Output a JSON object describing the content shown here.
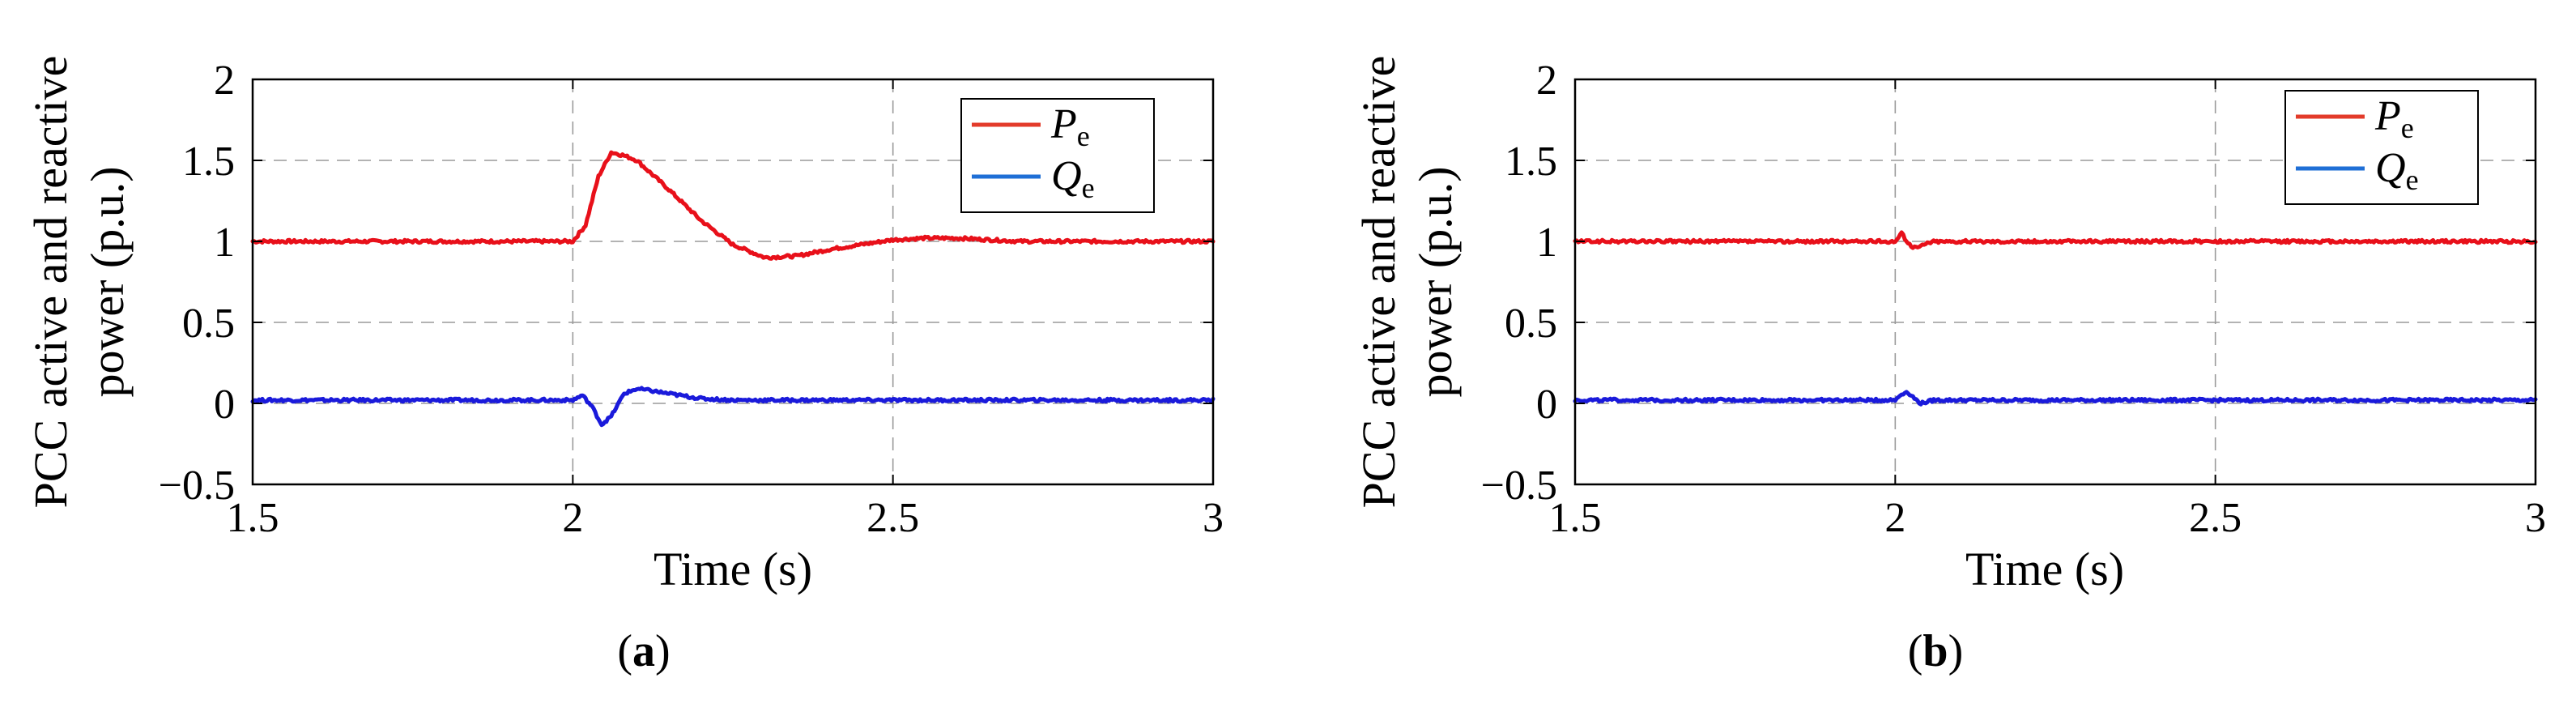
{
  "chart_data": [
    {
      "type": "line",
      "panel_label": "a",
      "xlabel": "Time (s)",
      "ylabel_line1": "PCC active and reactive",
      "ylabel_line2": "power (p.u.)",
      "xlim": [
        1.5,
        3
      ],
      "ylim": [
        -0.5,
        2
      ],
      "xticks": [
        1.5,
        2,
        2.5,
        3
      ],
      "xtick_labels": [
        "1.5",
        "2",
        "2.5",
        "3"
      ],
      "yticks": [
        -0.5,
        0,
        0.5,
        1,
        1.5,
        2
      ],
      "ytick_labels": [
        "−0.5",
        "0",
        "0.5",
        "1",
        "1.5",
        "2"
      ],
      "grid": true,
      "legend_position": "top-right",
      "series": [
        {
          "name": "P",
          "name_sub": "e",
          "color": "#e8101a",
          "legend_color": "#e33b2a",
          "x": [
            1.5,
            1.9,
            2.0,
            2.02,
            2.04,
            2.06,
            2.08,
            2.1,
            2.15,
            2.2,
            2.25,
            2.3,
            2.35,
            2.4,
            2.45,
            2.5,
            2.55,
            2.6,
            2.65,
            2.7,
            2.8,
            3.0
          ],
          "y": [
            1.0,
            1.0,
            1.0,
            1.1,
            1.4,
            1.55,
            1.53,
            1.5,
            1.32,
            1.13,
            0.98,
            0.9,
            0.91,
            0.95,
            0.98,
            1.01,
            1.02,
            1.02,
            1.01,
            1.0,
            1.0,
            1.0
          ]
        },
        {
          "name": "Q",
          "name_sub": "e",
          "color": "#1a1adb",
          "legend_color": "#1f6fd6",
          "x": [
            1.5,
            1.95,
            2.0,
            2.015,
            2.03,
            2.045,
            2.06,
            2.08,
            2.1,
            2.12,
            2.15,
            2.2,
            2.25,
            2.3,
            3.0
          ],
          "y": [
            0.02,
            0.02,
            0.02,
            0.05,
            -0.02,
            -0.13,
            -0.08,
            0.06,
            0.09,
            0.08,
            0.06,
            0.03,
            0.02,
            0.02,
            0.02
          ]
        }
      ]
    },
    {
      "type": "line",
      "panel_label": "b",
      "xlabel": "Time (s)",
      "ylabel_line1": "PCC active and reactive",
      "ylabel_line2": "power (p.u.)",
      "xlim": [
        1.5,
        3
      ],
      "ylim": [
        -0.5,
        2
      ],
      "xticks": [
        1.5,
        2,
        2.5,
        3
      ],
      "xtick_labels": [
        "1.5",
        "2",
        "2.5",
        "3"
      ],
      "yticks": [
        -0.5,
        0,
        0.5,
        1,
        1.5,
        2
      ],
      "ytick_labels": [
        "−0.5",
        "0",
        "0.5",
        "1",
        "1.5",
        "2"
      ],
      "grid": true,
      "legend_position": "top-right",
      "series": [
        {
          "name": "P",
          "name_sub": "e",
          "color": "#e8101a",
          "legend_color": "#e33b2a",
          "x": [
            1.5,
            2.0,
            2.01,
            2.02,
            2.03,
            2.04,
            2.05,
            2.06,
            2.08,
            2.1,
            3.0
          ],
          "y": [
            1.0,
            1.0,
            1.05,
            0.99,
            0.96,
            0.97,
            0.99,
            1.0,
            1.0,
            1.0,
            1.0
          ]
        },
        {
          "name": "Q",
          "name_sub": "e",
          "color": "#1a1adb",
          "legend_color": "#1f6fd6",
          "x": [
            1.5,
            2.0,
            2.01,
            2.02,
            2.03,
            2.04,
            2.05,
            2.06,
            2.08,
            3.0
          ],
          "y": [
            0.02,
            0.02,
            0.06,
            0.07,
            0.03,
            0.0,
            0.01,
            0.02,
            0.02,
            0.02
          ]
        }
      ]
    }
  ]
}
